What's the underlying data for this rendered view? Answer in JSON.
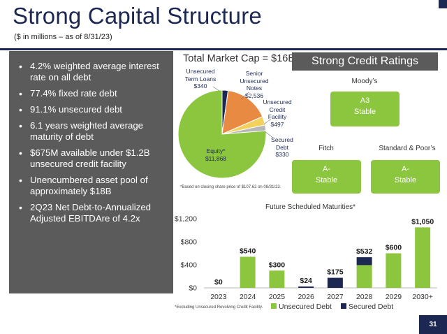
{
  "header": {
    "title": "Strong Capital Structure",
    "subtitle": "($ in millions – as of 8/31/23)"
  },
  "bullets": [
    "4.2% weighted average interest rate on all debt",
    "77.4% fixed rate debt",
    "91.1% unsecured debt",
    "6.1 years weighted average maturity of debt",
    "$675M available under $1.2B unsecured credit facility",
    "Unencumbered asset pool of approximately $18B",
    "2Q23 Net Debt-to-Annualized Adjusted EBITDAre of 4.2x"
  ],
  "ratings": {
    "header": "Strong Credit Ratings",
    "moodys": {
      "agency": "Moody’s",
      "rating": "A3",
      "outlook": "Stable"
    },
    "fitch": {
      "agency": "Fitch",
      "rating": "A-",
      "outlook": "Stable"
    },
    "sp": {
      "agency": "Standard & Poor’s",
      "rating": "A-",
      "outlook": "Stable"
    }
  },
  "page_number": "31",
  "colors": {
    "navy": "#1c2752",
    "green": "#8cc63f",
    "orange": "#e98a43",
    "yellow": "#f2d15c",
    "gray_panel": "#5b5b5b"
  },
  "chart_data": [
    {
      "type": "pie",
      "title": "Total Market Cap = $16B",
      "footnote": "*Based on closing share price of $107.62 on 08/31/23.",
      "slices": [
        {
          "name": "Unsecured Term Loans",
          "value": 340,
          "label": "$340",
          "color": "#1c2752"
        },
        {
          "name": "Senior Unsecured Notes",
          "value": 2536,
          "label": "$2,536",
          "color": "#e98a43"
        },
        {
          "name": "Unsecured Credit Facility",
          "value": 497,
          "label": "$497",
          "color": "#f2d15c"
        },
        {
          "name": "Secured Debt",
          "value": 330,
          "label": "$330",
          "color": "#b7b7b7"
        },
        {
          "name": "Equity*",
          "value": 11868,
          "label": "$11,868",
          "color": "#8cc63f"
        }
      ]
    },
    {
      "type": "bar",
      "stacked": true,
      "title": "Future Scheduled Maturities*",
      "footnote": "*Excluding Unsecured Revolving Credit Facility.",
      "categories": [
        "2023",
        "2024",
        "2025",
        "2026",
        "2027",
        "2028",
        "2029",
        "2030+"
      ],
      "series": [
        {
          "name": "Unsecured Debt",
          "color": "#8cc63f",
          "values": [
            0,
            540,
            300,
            0,
            0,
            395,
            600,
            1050
          ]
        },
        {
          "name": "Secured Debt",
          "color": "#1c2752",
          "values": [
            0,
            0,
            0,
            24,
            175,
            137,
            0,
            0
          ]
        }
      ],
      "data_labels": [
        "$0",
        "$540",
        "$300",
        "$24",
        "$175",
        "$532",
        "$600",
        "$1,050"
      ],
      "y_ticks": [
        "$0",
        "$400",
        "$800",
        "$1,200"
      ],
      "ylim": [
        0,
        1200
      ],
      "legend_position": "bottom"
    }
  ]
}
